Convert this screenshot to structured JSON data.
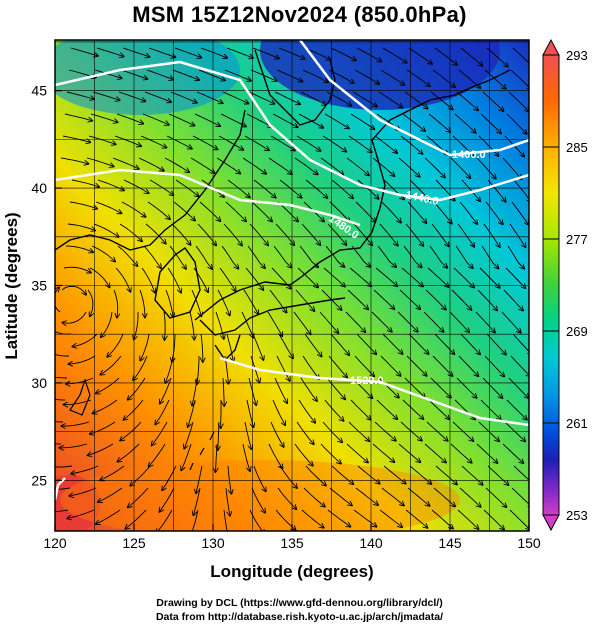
{
  "title": "MSM 15Z12Nov2024 (850.0hPa)",
  "axes": {
    "xlabel": "Longitude (degrees)",
    "ylabel": "Latitude  (degrees)",
    "xlim": [
      120,
      150
    ],
    "ylim": [
      22.4,
      47.6
    ],
    "xticks": [
      120,
      125,
      130,
      135,
      140,
      145,
      150
    ],
    "yticks": [
      25,
      30,
      35,
      40,
      45
    ],
    "grid": true
  },
  "colorbar": {
    "min": 253,
    "max": 293,
    "tick_labels": [
      293,
      285,
      277,
      269,
      261,
      253
    ],
    "colors": [
      "#f05050",
      "#ff6a00",
      "#ffb000",
      "#f2e600",
      "#a8e600",
      "#3cd23c",
      "#00d28c",
      "#00c8d2",
      "#0096e6",
      "#0050dc",
      "#1e1eb4",
      "#7828c8",
      "#d23cc8"
    ]
  },
  "contours": [
    {
      "label": "1400.0"
    },
    {
      "label": "1440.0"
    },
    {
      "label": "1480.0"
    },
    {
      "label": "1520.0"
    }
  ],
  "credits": {
    "line1": "Drawing by DCL (https://www.gfd-dennou.org/library/dcl/)",
    "line2": "Data from http://database.rish.kyoto-u.ac.jp/arch/jmadata/"
  }
}
